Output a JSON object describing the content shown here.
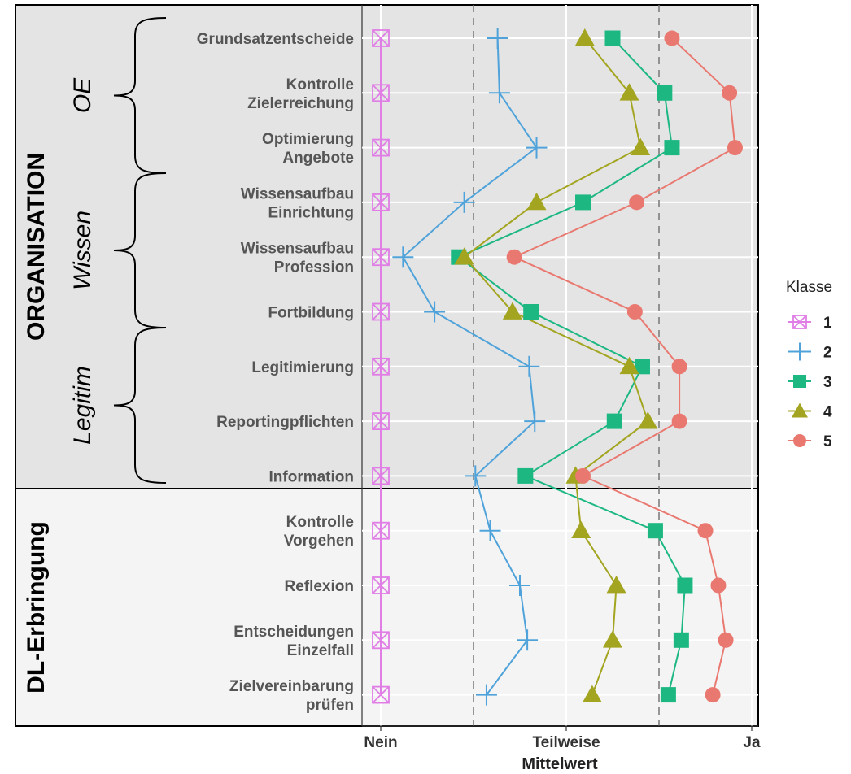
{
  "chart_data": {
    "type": "line",
    "xlabel": "Mittelwert",
    "x_ticks": [
      "Nein",
      "Teilweise",
      "Ja"
    ],
    "xlim": [
      0,
      2
    ],
    "reference_lines": [
      0.5,
      1.5
    ],
    "categories": [
      "Grundsatzentscheide",
      "Kontrolle\nZielerreichung",
      "Optimierung\nAngebote",
      "Wissensaufbau\nEinrichtung",
      "Wissensaufbau\nProfession",
      "Fortbildung",
      "Legitimierung",
      "Reportingpflichten",
      "Information",
      "Kontrolle\nVorgehen",
      "Reflexion",
      "Entscheidungen\nEinzelfall",
      "Zielvereinbarung\nprüfen"
    ],
    "panels": [
      {
        "label": "ORGANISATION",
        "rows": [
          0,
          8
        ]
      },
      {
        "label": "DL-Erbringung",
        "rows": [
          9,
          12
        ]
      }
    ],
    "subgroups": [
      {
        "label": "OE",
        "rows": [
          0,
          2
        ]
      },
      {
        "label": "Wissen",
        "rows": [
          3,
          5
        ]
      },
      {
        "label": "Legitim",
        "rows": [
          6,
          8
        ]
      }
    ],
    "legend": {
      "title": "Klasse",
      "position": "right"
    },
    "series": [
      {
        "name": "1",
        "color": "#E07EE6",
        "marker": "boxx",
        "values": [
          0,
          0,
          0,
          0,
          0,
          0,
          0,
          0,
          0,
          0,
          0,
          0,
          0
        ]
      },
      {
        "name": "2",
        "color": "#4FA3DA",
        "marker": "plus",
        "values": [
          0.63,
          0.64,
          0.84,
          0.45,
          0.12,
          0.29,
          0.8,
          0.83,
          0.51,
          0.59,
          0.75,
          0.79,
          0.57
        ]
      },
      {
        "name": "3",
        "color": "#1DB882",
        "marker": "square",
        "values": [
          1.25,
          1.53,
          1.57,
          1.09,
          0.42,
          0.81,
          1.41,
          1.26,
          0.78,
          1.48,
          1.64,
          1.62,
          1.55
        ]
      },
      {
        "name": "4",
        "color": "#A3A521",
        "marker": "triangle",
        "values": [
          1.1,
          1.34,
          1.4,
          0.84,
          0.45,
          0.71,
          1.34,
          1.44,
          1.05,
          1.08,
          1.27,
          1.25,
          1.14
        ]
      },
      {
        "name": "5",
        "color": "#E97970",
        "marker": "circle",
        "values": [
          1.57,
          1.88,
          1.91,
          1.38,
          0.72,
          1.37,
          1.61,
          1.61,
          1.09,
          1.75,
          1.82,
          1.86,
          1.79
        ]
      }
    ]
  }
}
